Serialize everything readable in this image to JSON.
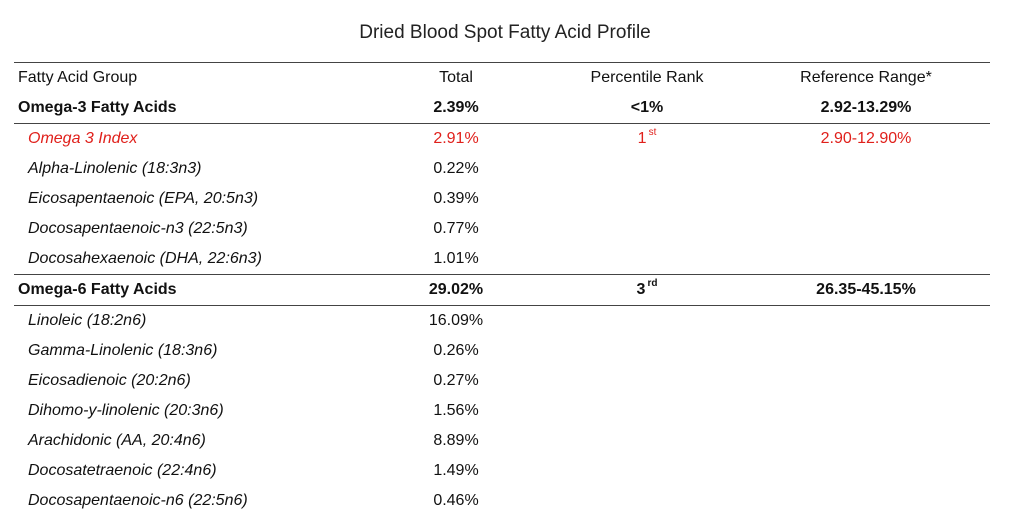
{
  "title": "Dried Blood Spot Fatty Acid Profile",
  "colors": {
    "highlight": "#e0201b",
    "rule": "#444444"
  },
  "headers": {
    "group": "Fatty Acid Group",
    "total": "Total",
    "percentile": "Percentile Rank",
    "reference": "Reference Range*"
  },
  "omega3": {
    "label": "Omega-3 Fatty Acids",
    "total": "2.39%",
    "percentile": "<1%",
    "reference": "2.92-13.29%",
    "index": {
      "label": "Omega 3 Index",
      "total": "2.91%",
      "percentile_num": "1",
      "percentile_suffix": "st",
      "reference": "2.90-12.90%"
    },
    "items": [
      {
        "name": "Alpha-Linolenic (18:3n3)",
        "total": "0.22%"
      },
      {
        "name": "Eicosapentaenoic (EPA, 20:5n3)",
        "total": "0.39%"
      },
      {
        "name": "Docosapentaenoic-n3 (22:5n3)",
        "total": "0.77%"
      },
      {
        "name": "Docosahexaenoic (DHA, 22:6n3)",
        "total": "1.01%"
      }
    ]
  },
  "omega6": {
    "label": "Omega-6 Fatty Acids",
    "total": "29.02%",
    "percentile_num": "3",
    "percentile_suffix": "rd",
    "reference": "26.35-45.15%",
    "items": [
      {
        "name": "Linoleic (18:2n6)",
        "total": "16.09%"
      },
      {
        "name": "Gamma-Linolenic (18:3n6)",
        "total": "0.26%"
      },
      {
        "name": "Eicosadienoic (20:2n6)",
        "total": "0.27%"
      },
      {
        "name": "Dihomo-y-linolenic (20:3n6)",
        "total": "1.56%"
      },
      {
        "name": "Arachidonic (AA, 20:4n6)",
        "total": "8.89%"
      },
      {
        "name": "Docosatetraenoic (22:4n6)",
        "total": "1.49%"
      },
      {
        "name": "Docosapentaenoic-n6 (22:5n6)",
        "total": "0.46%"
      }
    ]
  }
}
